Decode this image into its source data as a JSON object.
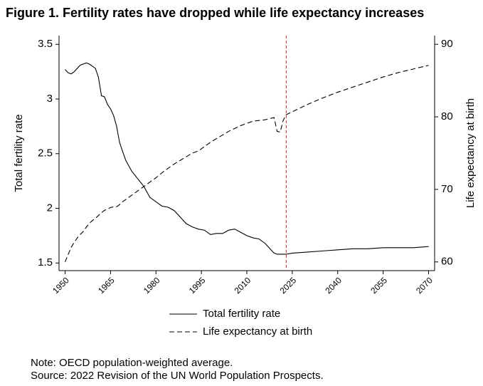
{
  "chart_data": {
    "type": "line",
    "title": "Figure 1. Fertility rates have dropped while life expectancy increases",
    "ylabel": "Total fertility rate",
    "y2label": "Life expectancy at birth",
    "notes": [
      "Note: OECD population-weighted average.",
      "Source: 2022 Revision of the UN World Population Prospects."
    ],
    "x": [
      1950,
      1951,
      1952,
      1953,
      1954,
      1955,
      1956,
      1957,
      1958,
      1959,
      1960,
      1961,
      1962,
      1963,
      1964,
      1965,
      1966,
      1967,
      1968,
      1969,
      1970,
      1972,
      1974,
      1976,
      1978,
      1980,
      1982,
      1984,
      1986,
      1988,
      1990,
      1992,
      1994,
      1996,
      1998,
      2000,
      2002,
      2004,
      2006,
      2008,
      2010,
      2012,
      2014,
      2016,
      2018,
      2019,
      2020,
      2021,
      2022,
      2023,
      2025,
      2030,
      2035,
      2040,
      2045,
      2050,
      2055,
      2060,
      2065,
      2070
    ],
    "series": [
      {
        "name": "Total fertility rate",
        "color": "#000000",
        "style": "solid",
        "axis": "y",
        "values": [
          3.27,
          3.24,
          3.23,
          3.25,
          3.28,
          3.31,
          3.32,
          3.33,
          3.32,
          3.3,
          3.28,
          3.2,
          3.03,
          3.02,
          2.95,
          2.91,
          2.85,
          2.75,
          2.6,
          2.52,
          2.44,
          2.34,
          2.27,
          2.2,
          2.1,
          2.06,
          2.02,
          2.01,
          1.98,
          1.92,
          1.86,
          1.83,
          1.81,
          1.8,
          1.76,
          1.77,
          1.77,
          1.8,
          1.81,
          1.78,
          1.75,
          1.73,
          1.72,
          1.68,
          1.62,
          1.59,
          1.58,
          1.58,
          1.58,
          1.58,
          1.59,
          1.6,
          1.61,
          1.62,
          1.63,
          1.63,
          1.64,
          1.64,
          1.64,
          1.65
        ]
      },
      {
        "name": "Life expectancy at birth",
        "color": "#000000",
        "style": "dashed",
        "axis": "y2",
        "values": [
          60,
          61,
          62,
          62.7,
          63.3,
          63.8,
          64.2,
          64.8,
          65.3,
          65.7,
          66,
          66.4,
          66.8,
          67.1,
          67.3,
          67.5,
          67.6,
          67.6,
          67.9,
          68.3,
          68.6,
          69.2,
          69.8,
          70.4,
          71,
          71.6,
          72.3,
          72.9,
          73.5,
          74,
          74.5,
          75,
          75.3,
          75.9,
          76.5,
          77,
          77.5,
          78,
          78.4,
          78.8,
          79.1,
          79.4,
          79.5,
          79.6,
          79.8,
          79.9,
          78.0,
          77.9,
          79.5,
          80.3,
          80.7,
          81.7,
          82.6,
          83.4,
          84.1,
          84.8,
          85.5,
          86.1,
          86.6,
          87.1
        ]
      }
    ],
    "xlim": [
      1948,
      2072
    ],
    "xticks": [
      1950,
      1965,
      1980,
      1995,
      2010,
      2025,
      2040,
      2055,
      2070
    ],
    "ylim": [
      1.43,
      3.58
    ],
    "yticks": [
      1.5,
      2,
      2.5,
      3,
      3.5
    ],
    "y2lim": [
      58.8,
      91.2
    ],
    "y2ticks": [
      60,
      70,
      80,
      90
    ],
    "vline": {
      "value": 2023,
      "color": "#d62728"
    },
    "grid": false
  }
}
